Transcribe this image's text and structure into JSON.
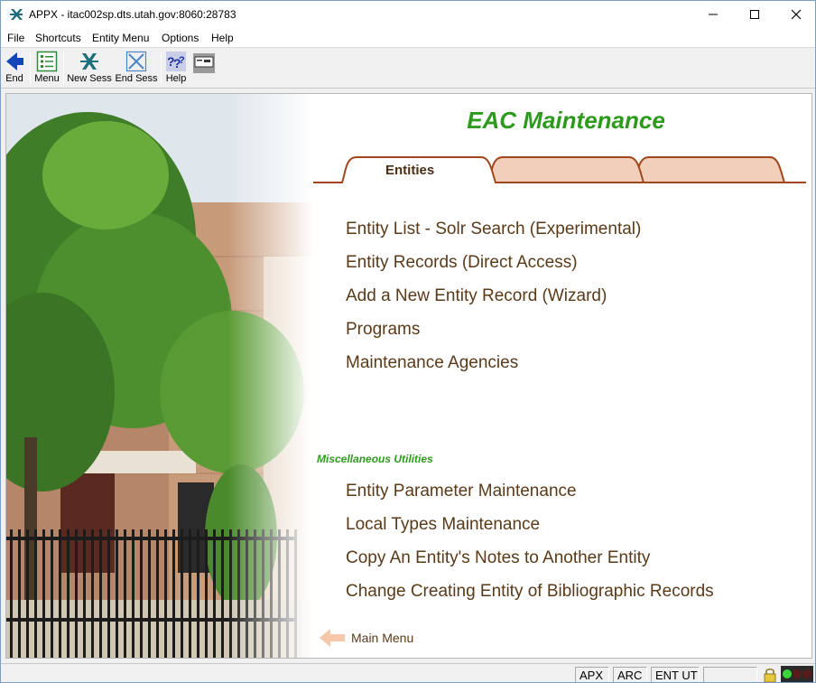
{
  "window": {
    "title": "APPX - itac002sp.dts.utah.gov:8060:28783"
  },
  "menubar": {
    "items": [
      "File",
      "Shortcuts",
      "Entity Menu",
      "Options",
      "Help"
    ]
  },
  "toolbar": {
    "end_label": "End",
    "menu_label": "Menu",
    "new_sess_label": "New Sess",
    "end_sess_label": "End Sess",
    "help_label": "Help"
  },
  "page": {
    "heading": "EAC Maintenance",
    "tabs": [
      {
        "label": "Entities",
        "active": true
      },
      {
        "label": "",
        "active": false
      },
      {
        "label": "",
        "active": false
      }
    ],
    "links": [
      "Entity List - Solr Search (Experimental)",
      "Entity Records (Direct Access)",
      "Add a New Entity Record (Wizard)",
      "Programs",
      "Maintenance Agencies"
    ],
    "misc_title": "Miscellaneous Utilities",
    "misc_links": [
      "Entity Parameter Maintenance",
      "Local Types Maintenance",
      "Copy An Entity's Notes to Another Entity",
      "Change Creating Entity of Bibliographic Records"
    ],
    "main_menu_label": "Main Menu"
  },
  "statusbar": {
    "cells": [
      "APX",
      "ARC",
      "ENT UT",
      ""
    ]
  },
  "colors": {
    "heading": "#2e9a1d",
    "link": "#5a3a18",
    "tab_fill": "#f1cfba",
    "tab_stroke": "#a2471b",
    "arrow": "#f6c7a8"
  },
  "icons": [
    "appx-logo-icon",
    "minimize-icon",
    "maximize-icon",
    "close-icon",
    "back-arrow-icon",
    "menu-list-icon",
    "new-session-icon",
    "end-session-icon",
    "help-icon",
    "keyboard-icon",
    "arrow-left-icon",
    "lock-icon",
    "status-lights-icon"
  ]
}
